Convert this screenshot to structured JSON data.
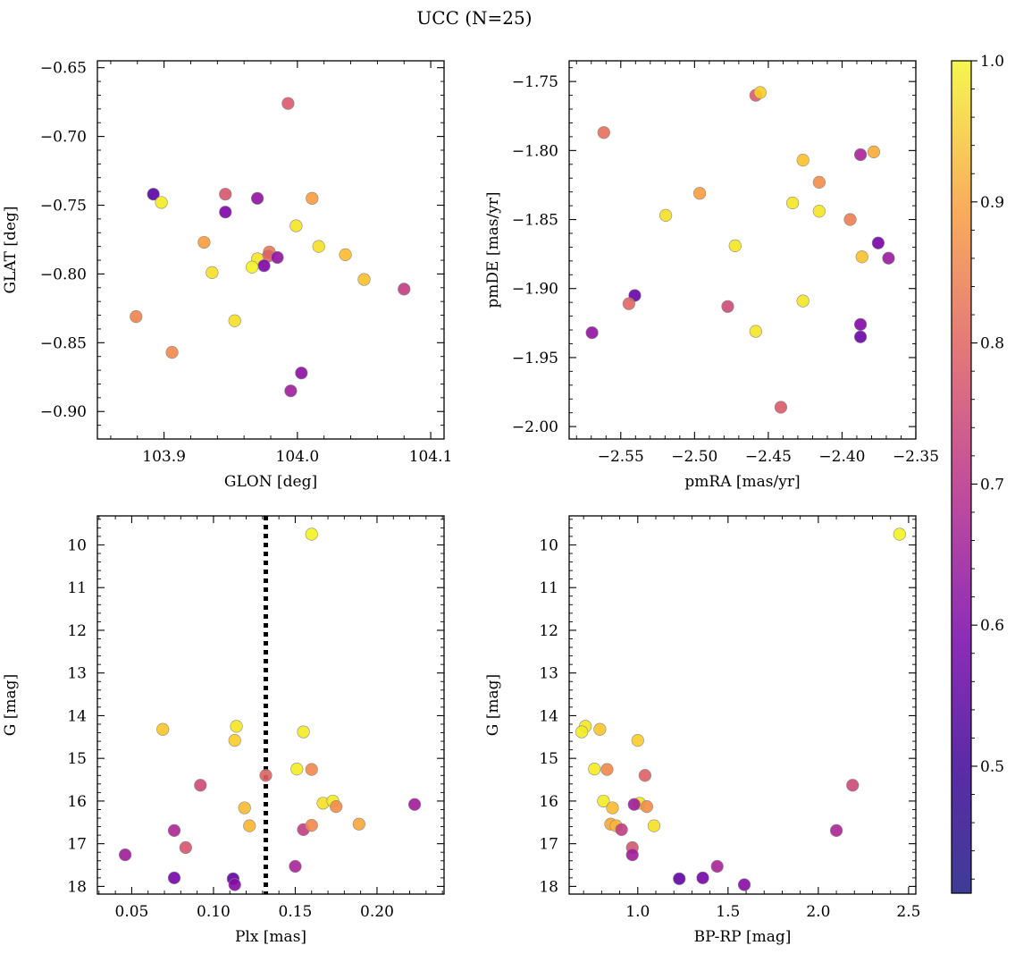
{
  "suptitle": "UCC (N=25)",
  "colorbar": {
    "vmin": 0.41,
    "vmax": 1.0,
    "ticks": [
      0.5,
      0.6,
      0.7,
      0.8,
      0.9,
      1.0
    ],
    "tick_labels": [
      "0.5",
      "0.6",
      "0.7",
      "0.8",
      "0.9",
      "1.0"
    ],
    "colormap": "plasma"
  },
  "chart_data": [
    {
      "type": "scatter",
      "id": "glon-glat",
      "xlabel": "GLON [deg]",
      "ylabel": "GLAT [deg]",
      "xlim": [
        103.85,
        104.11
      ],
      "ylim": [
        -0.92,
        -0.645
      ],
      "xticks": [
        103.9,
        104.0,
        104.1
      ],
      "xtick_labels": [
        "103.9",
        "104.0",
        "104.1"
      ],
      "yticks": [
        -0.65,
        -0.7,
        -0.75,
        -0.8,
        -0.85,
        -0.9
      ],
      "ytick_labels": [
        "−0.65",
        "−0.70",
        "−0.75",
        "−0.80",
        "−0.85",
        "−0.90"
      ],
      "points": [
        {
          "x": 103.993,
          "y": -0.676,
          "c": 0.7
        },
        {
          "x": 103.892,
          "y": -0.742,
          "c": 0.42
        },
        {
          "x": 103.898,
          "y": -0.748,
          "c": 0.98
        },
        {
          "x": 103.946,
          "y": -0.742,
          "c": 0.69
        },
        {
          "x": 103.946,
          "y": -0.755,
          "c": 0.48
        },
        {
          "x": 103.97,
          "y": -0.745,
          "c": 0.52
        },
        {
          "x": 104.011,
          "y": -0.745,
          "c": 0.84
        },
        {
          "x": 103.999,
          "y": -0.765,
          "c": 0.97
        },
        {
          "x": 103.93,
          "y": -0.777,
          "c": 0.84
        },
        {
          "x": 104.016,
          "y": -0.78,
          "c": 0.96
        },
        {
          "x": 103.979,
          "y": -0.784,
          "c": 0.77
        },
        {
          "x": 103.978,
          "y": -0.787,
          "c": 0.72
        },
        {
          "x": 103.97,
          "y": -0.789,
          "c": 0.97
        },
        {
          "x": 103.985,
          "y": -0.788,
          "c": 0.52
        },
        {
          "x": 104.036,
          "y": -0.786,
          "c": 0.9
        },
        {
          "x": 103.975,
          "y": -0.794,
          "c": 0.48
        },
        {
          "x": 103.966,
          "y": -0.795,
          "c": 0.99
        },
        {
          "x": 103.936,
          "y": -0.799,
          "c": 0.96
        },
        {
          "x": 104.05,
          "y": -0.804,
          "c": 0.91
        },
        {
          "x": 104.08,
          "y": -0.811,
          "c": 0.63
        },
        {
          "x": 103.879,
          "y": -0.831,
          "c": 0.79
        },
        {
          "x": 103.953,
          "y": -0.834,
          "c": 0.96
        },
        {
          "x": 103.906,
          "y": -0.857,
          "c": 0.8
        },
        {
          "x": 104.003,
          "y": -0.872,
          "c": 0.51
        },
        {
          "x": 103.995,
          "y": -0.885,
          "c": 0.55
        }
      ]
    },
    {
      "type": "scatter",
      "id": "pmra-pmde",
      "xlabel": "pmRA [mas/yr]",
      "ylabel": "pmDE [mas/yr]",
      "xlim": [
        -2.585,
        -2.35
      ],
      "ylim": [
        -2.009,
        -1.735
      ],
      "xticks": [
        -2.55,
        -2.5,
        -2.45,
        -2.4,
        -2.35
      ],
      "xtick_labels": [
        "−2.55",
        "−2.50",
        "−2.45",
        "−2.40",
        "−2.35"
      ],
      "yticks": [
        -1.75,
        -1.8,
        -1.85,
        -1.9,
        -1.95,
        -2.0
      ],
      "ytick_labels": [
        "−1.75",
        "−1.80",
        "−1.85",
        "−1.90",
        "−1.95",
        "−2.00"
      ],
      "points": [
        {
          "x": -2.4585,
          "y": -1.76,
          "c": 0.7
        },
        {
          "x": -2.4555,
          "y": -1.758,
          "c": 0.93
        },
        {
          "x": -2.5615,
          "y": -1.787,
          "c": 0.75
        },
        {
          "x": -2.4265,
          "y": -1.807,
          "c": 0.91
        },
        {
          "x": -2.3875,
          "y": -1.803,
          "c": 0.57
        },
        {
          "x": -2.3785,
          "y": -1.801,
          "c": 0.87
        },
        {
          "x": -2.4155,
          "y": -1.823,
          "c": 0.81
        },
        {
          "x": -2.4965,
          "y": -1.831,
          "c": 0.84
        },
        {
          "x": -2.4335,
          "y": -1.838,
          "c": 0.97
        },
        {
          "x": -2.4155,
          "y": -1.844,
          "c": 0.97
        },
        {
          "x": -2.5195,
          "y": -1.847,
          "c": 0.96
        },
        {
          "x": -2.3945,
          "y": -1.85,
          "c": 0.78
        },
        {
          "x": -2.4725,
          "y": -1.869,
          "c": 0.97
        },
        {
          "x": -2.3755,
          "y": -1.867,
          "c": 0.47
        },
        {
          "x": -2.3865,
          "y": -1.877,
          "c": 0.91
        },
        {
          "x": -2.3685,
          "y": -1.878,
          "c": 0.54
        },
        {
          "x": -2.5405,
          "y": -1.905,
          "c": 0.44
        },
        {
          "x": -2.5445,
          "y": -1.911,
          "c": 0.73
        },
        {
          "x": -2.4265,
          "y": -1.909,
          "c": 0.97
        },
        {
          "x": -2.4775,
          "y": -1.913,
          "c": 0.66
        },
        {
          "x": -2.5695,
          "y": -1.932,
          "c": 0.52
        },
        {
          "x": -2.4585,
          "y": -1.931,
          "c": 0.97
        },
        {
          "x": -2.3875,
          "y": -1.926,
          "c": 0.49
        },
        {
          "x": -2.3875,
          "y": -1.935,
          "c": 0.45
        },
        {
          "x": -2.4415,
          "y": -1.986,
          "c": 0.7
        }
      ]
    },
    {
      "type": "scatter",
      "id": "plx-g",
      "xlabel": "Plx [mas]",
      "ylabel": "G [mag]",
      "xlim": [
        0.029,
        0.241
      ],
      "ylim": [
        18.18,
        9.32
      ],
      "y_inverted": true,
      "xticks": [
        0.05,
        0.1,
        0.15,
        0.2
      ],
      "xtick_labels": [
        "0.05",
        "0.10",
        "0.15",
        "0.20"
      ],
      "yticks": [
        10,
        11,
        12,
        13,
        14,
        15,
        16,
        17,
        18
      ],
      "ytick_labels": [
        "10",
        "11",
        "12",
        "13",
        "14",
        "15",
        "16",
        "17",
        "18"
      ],
      "vline": {
        "x": 0.132,
        "style": "dotted"
      },
      "points": [
        {
          "x": 0.16,
          "y": 9.75,
          "c": 0.99
        },
        {
          "x": 0.069,
          "y": 14.32,
          "c": 0.92
        },
        {
          "x": 0.114,
          "y": 14.25,
          "c": 0.97
        },
        {
          "x": 0.113,
          "y": 14.58,
          "c": 0.93
        },
        {
          "x": 0.155,
          "y": 14.38,
          "c": 0.98
        },
        {
          "x": 0.151,
          "y": 15.25,
          "c": 0.98
        },
        {
          "x": 0.16,
          "y": 15.26,
          "c": 0.8
        },
        {
          "x": 0.092,
          "y": 15.63,
          "c": 0.66
        },
        {
          "x": 0.132,
          "y": 15.4,
          "c": 0.72
        },
        {
          "x": 0.167,
          "y": 16.05,
          "c": 0.96
        },
        {
          "x": 0.173,
          "y": 16.0,
          "c": 0.98
        },
        {
          "x": 0.175,
          "y": 16.13,
          "c": 0.81
        },
        {
          "x": 0.223,
          "y": 16.08,
          "c": 0.55
        },
        {
          "x": 0.119,
          "y": 16.16,
          "c": 0.9
        },
        {
          "x": 0.122,
          "y": 16.58,
          "c": 0.89
        },
        {
          "x": 0.155,
          "y": 16.67,
          "c": 0.63
        },
        {
          "x": 0.16,
          "y": 16.57,
          "c": 0.8
        },
        {
          "x": 0.189,
          "y": 16.54,
          "c": 0.86
        },
        {
          "x": 0.076,
          "y": 16.69,
          "c": 0.58
        },
        {
          "x": 0.083,
          "y": 17.09,
          "c": 0.69
        },
        {
          "x": 0.046,
          "y": 17.26,
          "c": 0.55
        },
        {
          "x": 0.15,
          "y": 17.53,
          "c": 0.57
        },
        {
          "x": 0.076,
          "y": 17.8,
          "c": 0.47
        },
        {
          "x": 0.112,
          "y": 17.82,
          "c": 0.43
        },
        {
          "x": 0.113,
          "y": 17.96,
          "c": 0.5
        }
      ]
    },
    {
      "type": "scatter",
      "id": "bprp-g",
      "xlabel": "BP-RP [mag]",
      "ylabel": "G [mag]",
      "xlim": [
        0.62,
        2.54
      ],
      "ylim": [
        18.18,
        9.32
      ],
      "y_inverted": true,
      "xticks": [
        1.0,
        1.5,
        2.0,
        2.5
      ],
      "xtick_labels": [
        "1.0",
        "1.5",
        "2.0",
        "2.5"
      ],
      "yticks": [
        10,
        11,
        12,
        13,
        14,
        15,
        16,
        17,
        18
      ],
      "ytick_labels": [
        "10",
        "11",
        "12",
        "13",
        "14",
        "15",
        "16",
        "17",
        "18"
      ],
      "points": [
        {
          "x": 2.45,
          "y": 9.75,
          "c": 0.99
        },
        {
          "x": 0.71,
          "y": 14.25,
          "c": 0.97
        },
        {
          "x": 0.69,
          "y": 14.38,
          "c": 0.98
        },
        {
          "x": 0.79,
          "y": 14.32,
          "c": 0.92
        },
        {
          "x": 1.0,
          "y": 14.58,
          "c": 0.93
        },
        {
          "x": 0.76,
          "y": 15.25,
          "c": 0.98
        },
        {
          "x": 0.83,
          "y": 15.26,
          "c": 0.8
        },
        {
          "x": 1.04,
          "y": 15.4,
          "c": 0.72
        },
        {
          "x": 2.19,
          "y": 15.63,
          "c": 0.66
        },
        {
          "x": 0.81,
          "y": 16.0,
          "c": 0.98
        },
        {
          "x": 1.01,
          "y": 16.05,
          "c": 0.96
        },
        {
          "x": 0.98,
          "y": 16.08,
          "c": 0.55
        },
        {
          "x": 1.05,
          "y": 16.13,
          "c": 0.81
        },
        {
          "x": 0.86,
          "y": 16.16,
          "c": 0.9
        },
        {
          "x": 0.85,
          "y": 16.54,
          "c": 0.86
        },
        {
          "x": 0.88,
          "y": 16.58,
          "c": 0.89
        },
        {
          "x": 1.09,
          "y": 16.58,
          "c": 0.96
        },
        {
          "x": 0.91,
          "y": 16.67,
          "c": 0.63
        },
        {
          "x": 2.1,
          "y": 16.69,
          "c": 0.58
        },
        {
          "x": 0.97,
          "y": 17.09,
          "c": 0.69
        },
        {
          "x": 0.97,
          "y": 17.26,
          "c": 0.55
        },
        {
          "x": 1.44,
          "y": 17.53,
          "c": 0.57
        },
        {
          "x": 1.23,
          "y": 17.82,
          "c": 0.43
        },
        {
          "x": 1.36,
          "y": 17.8,
          "c": 0.47
        },
        {
          "x": 1.59,
          "y": 17.96,
          "c": 0.5
        }
      ]
    }
  ]
}
